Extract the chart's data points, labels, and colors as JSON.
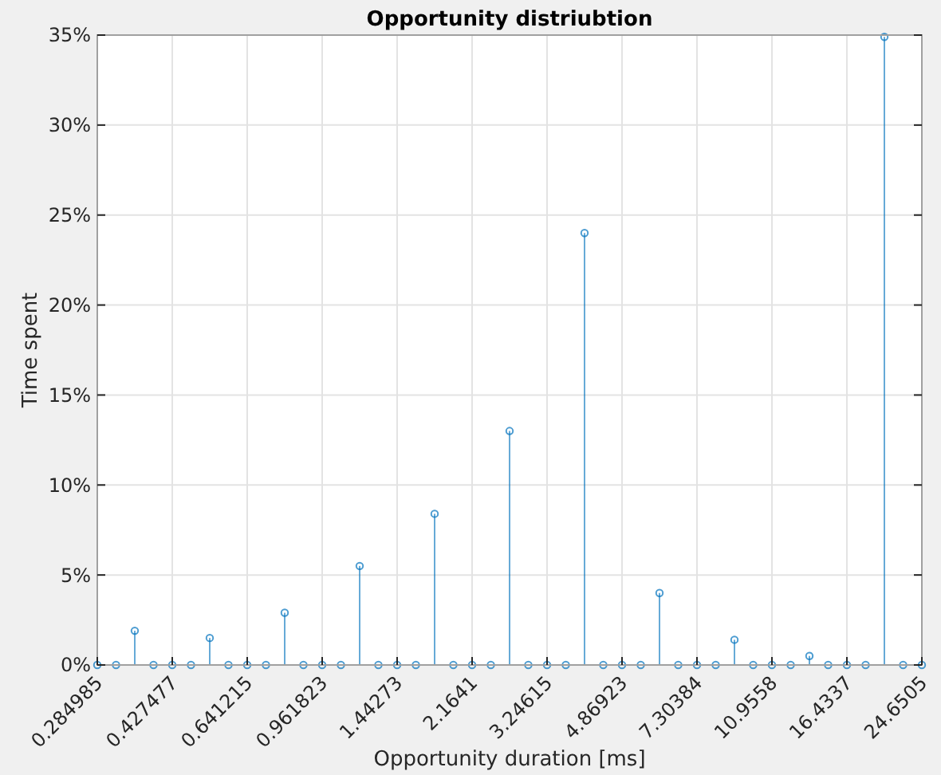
{
  "chart_data": {
    "type": "lollipop",
    "title": "Opportunity distriubtion",
    "xlabel": "Opportunity duration [ms]",
    "ylabel": "Time spent",
    "log": "x",
    "xlim": [
      0.284985,
      24.6505
    ],
    "xticks": [
      0.284985,
      0.427477,
      0.641215,
      0.961823,
      1.44273,
      2.1641,
      3.24615,
      4.86923,
      7.30384,
      10.9558,
      16.4337,
      24.6505
    ],
    "ylim": [
      0,
      35
    ],
    "yticks": [
      {
        "value": 0,
        "label": "0%"
      },
      {
        "value": 5,
        "label": "5%"
      },
      {
        "value": 10,
        "label": "10%"
      },
      {
        "value": 15,
        "label": "15%"
      },
      {
        "value": 20,
        "label": "20%"
      },
      {
        "value": 25,
        "label": "25%"
      },
      {
        "value": 30,
        "label": "30%"
      },
      {
        "value": 35,
        "label": "35%"
      }
    ],
    "grid": true,
    "marker": "circle",
    "series": [
      {
        "color": "#0072bd",
        "x": [
          0.284985,
          0.31539,
          0.34903,
          0.38627,
          0.427477,
          0.47308,
          0.52355,
          0.5794,
          0.641215,
          0.70962,
          0.78532,
          0.8691,
          0.961823,
          1.06443,
          1.17799,
          1.30366,
          1.44273,
          1.59665,
          1.76699,
          1.95548,
          2.1641,
          2.39497,
          2.65047,
          2.93323,
          3.24615,
          3.59246,
          3.9757,
          4.39984,
          4.86923,
          5.38869,
          5.96357,
          6.59977,
          7.30384,
          8.08303,
          8.94534,
          9.89965,
          10.9558,
          12.1246,
          13.418,
          14.8495,
          16.4337,
          18.1869,
          20.1271,
          22.2743,
          24.6505
        ],
        "values": [
          0,
          0,
          1.9,
          0,
          0,
          0,
          1.5,
          0,
          0,
          0,
          2.9,
          0,
          0,
          0,
          5.5,
          0,
          0,
          0,
          8.4,
          0,
          0,
          0,
          13,
          0,
          0,
          0,
          24,
          0,
          0,
          0,
          4,
          0,
          0,
          0,
          1.4,
          0,
          0,
          0,
          0.5,
          0,
          0,
          0,
          34.9,
          0,
          0
        ]
      }
    ]
  }
}
